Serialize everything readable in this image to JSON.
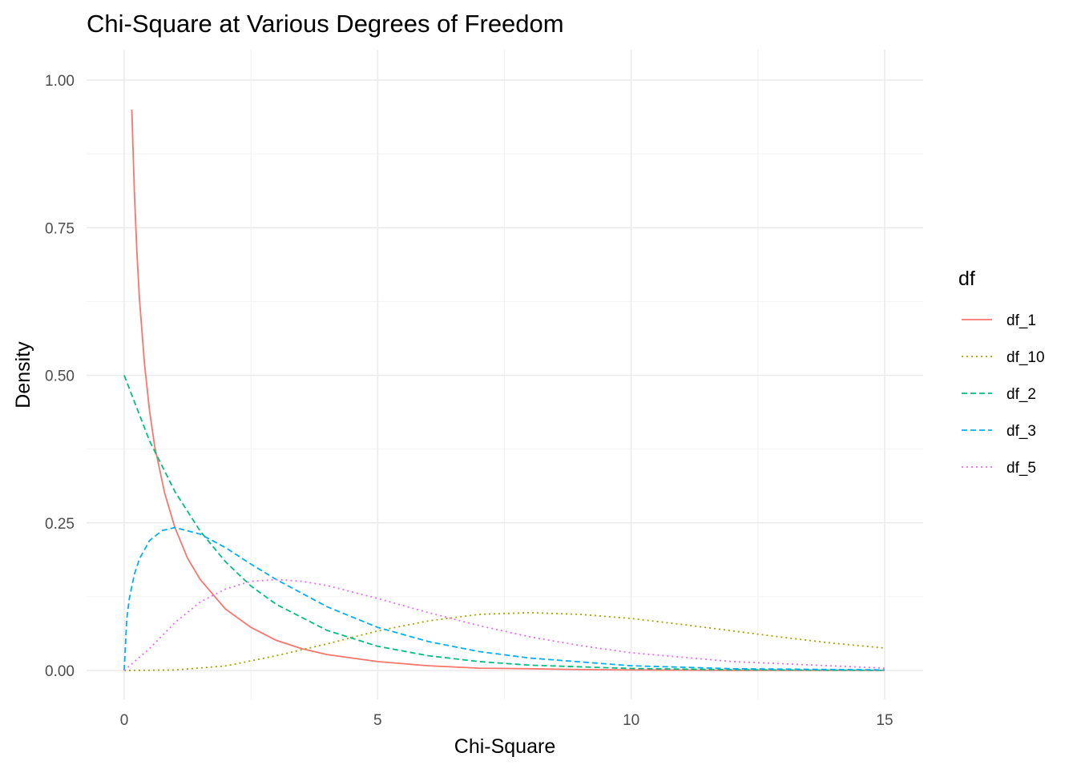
{
  "chart_data": {
    "type": "line",
    "title": "Chi-Square at Various Degrees of Freedom",
    "xlabel": "Chi-Square",
    "ylabel": "Density",
    "xlim": [
      0,
      15
    ],
    "ylim": [
      0,
      1.0
    ],
    "x_ticks": [
      0,
      5,
      10,
      15
    ],
    "x_tick_labels": [
      "0",
      "5",
      "10",
      "15"
    ],
    "y_ticks": [
      0,
      0.25,
      0.5,
      0.75,
      1.0
    ],
    "y_tick_labels": [
      "0.00",
      "0.25",
      "0.50",
      "0.75",
      "1.00"
    ],
    "grid": true,
    "legend": {
      "title": "df",
      "position": "right"
    },
    "series": [
      {
        "name": "df_1",
        "color": "#F8766D",
        "dash": "solid",
        "x": [
          0.15,
          0.2,
          0.25,
          0.3,
          0.4,
          0.5,
          0.6,
          0.8,
          1.0,
          1.25,
          1.5,
          2.0,
          2.5,
          3.0,
          3.5,
          4.0,
          5.0,
          6.0,
          7.0,
          8.0,
          9.0,
          10.0,
          12.0,
          15.0
        ],
        "y": [
          0.95,
          0.81,
          0.71,
          0.63,
          0.52,
          0.44,
          0.38,
          0.3,
          0.242,
          0.19,
          0.154,
          0.104,
          0.073,
          0.051,
          0.037,
          0.027,
          0.015,
          0.008,
          0.004,
          0.003,
          0.0015,
          0.0009,
          0.0003,
          0.0001
        ]
      },
      {
        "name": "df_10",
        "color": "#A3A500",
        "dash": "dotted",
        "x": [
          0,
          1,
          2,
          3,
          4,
          5,
          6,
          7,
          8,
          9,
          10,
          11,
          12,
          13,
          14,
          15
        ],
        "y": [
          0.0,
          0.0008,
          0.0077,
          0.025,
          0.0451,
          0.067,
          0.084,
          0.095,
          0.098,
          0.095,
          0.088,
          0.078,
          0.067,
          0.056,
          0.046,
          0.038
        ]
      },
      {
        "name": "df_2",
        "color": "#00BF7D",
        "dash": "dashed",
        "x": [
          0,
          0.5,
          1,
          1.5,
          2,
          2.5,
          3,
          4,
          5,
          6,
          7,
          8,
          10,
          12,
          15
        ],
        "y": [
          0.5,
          0.389,
          0.303,
          0.236,
          0.184,
          0.143,
          0.112,
          0.068,
          0.041,
          0.025,
          0.015,
          0.009,
          0.0034,
          0.0012,
          0.0003
        ]
      },
      {
        "name": "df_3",
        "color": "#00B0F6",
        "dash": "dashed",
        "x": [
          0,
          0.05,
          0.1,
          0.2,
          0.3,
          0.5,
          0.75,
          1,
          1.5,
          2,
          2.5,
          3,
          4,
          5,
          6,
          7,
          8,
          10,
          12,
          15
        ],
        "y": [
          0.0,
          0.087,
          0.121,
          0.163,
          0.189,
          0.22,
          0.237,
          0.242,
          0.231,
          0.208,
          0.18,
          0.154,
          0.108,
          0.073,
          0.049,
          0.032,
          0.021,
          0.008,
          0.003,
          0.001
        ]
      },
      {
        "name": "df_5",
        "color": "#E76BF3",
        "dash": "dotted",
        "x": [
          0,
          0.5,
          1,
          1.5,
          2,
          2.5,
          3,
          3.5,
          4,
          5,
          6,
          7,
          8,
          9,
          10,
          12,
          15
        ],
        "y": [
          0.0,
          0.037,
          0.081,
          0.116,
          0.138,
          0.151,
          0.154,
          0.151,
          0.144,
          0.122,
          0.098,
          0.076,
          0.057,
          0.042,
          0.03,
          0.015,
          0.004
        ]
      }
    ]
  }
}
